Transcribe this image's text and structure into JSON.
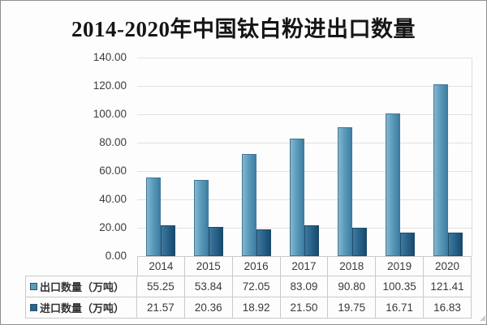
{
  "chart_data": {
    "type": "bar",
    "title": "2014-2020年中国钛白粉进出口数量",
    "categories": [
      "2014",
      "2015",
      "2016",
      "2017",
      "2018",
      "2019",
      "2020"
    ],
    "series": [
      {
        "key": "export",
        "name": "出口数量（万吨）",
        "values": [
          55.25,
          53.84,
          72.05,
          83.09,
          90.8,
          100.35,
          121.41
        ],
        "color_light": "#85b6ce",
        "color": "#5b9cbb",
        "color_dark": "#3e7ea1",
        "border_color": "#41789a"
      },
      {
        "key": "import",
        "name": "进口数量（万吨）",
        "values": [
          21.57,
          20.36,
          18.92,
          21.5,
          19.75,
          16.71,
          16.83
        ],
        "color_light": "#40789d",
        "color": "#2b648c",
        "color_dark": "#184a6c",
        "border_color": "#1c4d6f"
      }
    ],
    "ylim": [
      0,
      140
    ],
    "ytick_step": 20,
    "ytick_labels": [
      "0.00",
      "20.00",
      "40.00",
      "60.00",
      "80.00",
      "100.00",
      "120.00",
      "140.00"
    ],
    "value_decimals": 2,
    "grid": true,
    "legend_position": "data-table-left",
    "style_colors": {
      "gridline": "#e1e1e1",
      "table_border": "#c9c9c9",
      "frame_border": "#8f8f8f",
      "axis_text": "#3d3d3d",
      "title_text": "#151515"
    }
  }
}
